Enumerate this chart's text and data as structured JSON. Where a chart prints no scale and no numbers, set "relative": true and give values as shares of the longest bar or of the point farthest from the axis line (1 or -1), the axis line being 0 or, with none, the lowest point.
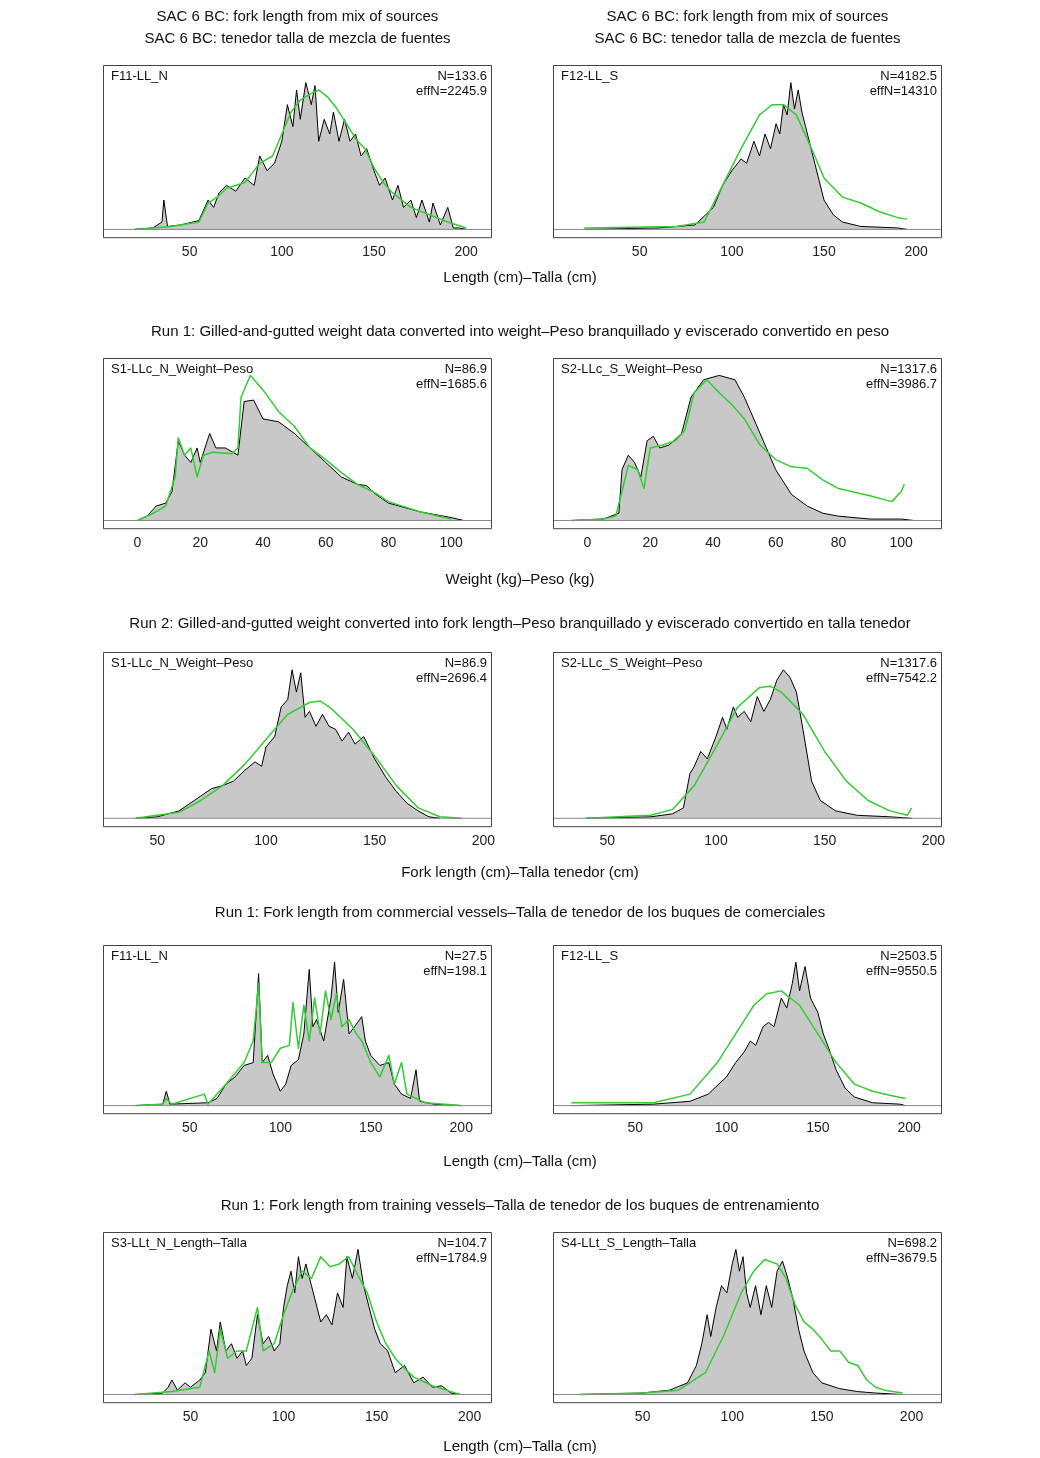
{
  "chart_data": [
    {
      "type": "area",
      "title": "SAC 6 BC: fork length from mix of sources",
      "subtitle": "SAC 6 BC: tenedor talla de mezcla de fuentes",
      "xlabel": "Length (cm)–Talla (cm)",
      "annotations": [
        "F11-LL_N",
        "N=133.6",
        "effN=2245.9"
      ],
      "relative": true,
      "xlim": [
        3,
        214
      ],
      "xticks": [
        50,
        100,
        150,
        200
      ],
      "series": [
        {
          "type": "area",
          "color": "#c8c8c8",
          "x": [
            20,
            30,
            35,
            36,
            38,
            45,
            55,
            60,
            63,
            66,
            70,
            75,
            80,
            85,
            88,
            92,
            96,
            100,
            103,
            106,
            108,
            110,
            113,
            116,
            118,
            120,
            123,
            126,
            128,
            131,
            134,
            137,
            140,
            143,
            146,
            150,
            153,
            156,
            160,
            163,
            166,
            170,
            173,
            176,
            180,
            182,
            186,
            190,
            193,
            196,
            200
          ],
          "values": [
            0,
            0.01,
            0.05,
            0.2,
            0.02,
            0.03,
            0.06,
            0.2,
            0.15,
            0.25,
            0.3,
            0.26,
            0.35,
            0.3,
            0.5,
            0.4,
            0.45,
            0.6,
            0.85,
            0.7,
            0.95,
            0.75,
            1.0,
            0.85,
            0.98,
            0.6,
            0.75,
            0.65,
            0.8,
            0.6,
            0.75,
            0.6,
            0.65,
            0.5,
            0.55,
            0.4,
            0.3,
            0.35,
            0.2,
            0.3,
            0.15,
            0.2,
            0.08,
            0.2,
            0.05,
            0.18,
            0.03,
            0.15,
            0.01,
            0.01,
            0
          ]
        },
        {
          "type": "line",
          "color": "#33cc33",
          "x": [
            20,
            40,
            55,
            60,
            65,
            70,
            80,
            88,
            95,
            100,
            105,
            110,
            115,
            120,
            125,
            130,
            135,
            140,
            145,
            150,
            155,
            160,
            170,
            180,
            190,
            200
          ],
          "values": [
            0,
            0.02,
            0.05,
            0.18,
            0.22,
            0.28,
            0.32,
            0.45,
            0.5,
            0.65,
            0.8,
            0.88,
            0.92,
            0.95,
            0.9,
            0.82,
            0.72,
            0.62,
            0.55,
            0.42,
            0.32,
            0.25,
            0.15,
            0.1,
            0.05,
            0.01
          ]
        }
      ]
    },
    {
      "type": "area",
      "title": "SAC 6 BC: fork length from mix of sources",
      "subtitle": "SAC 6 BC: tenedor talla de mezcla de fuentes",
      "annotations": [
        "F12-LL_S",
        "N=4182.5",
        "effN=14310"
      ],
      "relative": true,
      "xlim": [
        3,
        214
      ],
      "xticks": [
        50,
        100,
        150,
        200
      ],
      "series": [
        {
          "type": "area",
          "color": "#c8c8c8",
          "x": [
            20,
            60,
            80,
            90,
            95,
            100,
            105,
            108,
            112,
            115,
            118,
            121,
            124,
            126,
            128,
            130,
            132,
            134,
            136,
            138,
            140,
            145,
            150,
            155,
            160,
            170,
            190,
            195
          ],
          "values": [
            0,
            0.01,
            0.03,
            0.15,
            0.3,
            0.4,
            0.48,
            0.45,
            0.6,
            0.5,
            0.65,
            0.55,
            0.72,
            0.65,
            0.85,
            0.78,
            1.0,
            0.82,
            0.95,
            0.8,
            0.7,
            0.45,
            0.2,
            0.1,
            0.05,
            0.02,
            0.01,
            0
          ]
        },
        {
          "type": "line",
          "color": "#33cc33",
          "x": [
            20,
            70,
            85,
            95,
            105,
            115,
            122,
            128,
            135,
            145,
            150,
            160,
            170,
            180,
            190,
            195
          ],
          "values": [
            0.01,
            0.02,
            0.05,
            0.3,
            0.55,
            0.78,
            0.85,
            0.85,
            0.78,
            0.5,
            0.35,
            0.22,
            0.18,
            0.12,
            0.08,
            0.07
          ]
        }
      ]
    },
    {
      "type": "area",
      "title": "Run 1: Gilled-and-gutted weight data converted into weight–Peso branquillado y eviscerado convertido en peso",
      "xlabel": "Weight (kg)–Peso (kg)",
      "annotations": [
        "S1-LLc_N_Weight–Peso",
        "N=86.9",
        "effN=1685.6"
      ],
      "relative": true,
      "xlim": [
        -11,
        113
      ],
      "xticks": [
        0,
        20,
        40,
        60,
        80,
        100
      ],
      "series": [
        {
          "type": "area",
          "color": "#c8c8c8",
          "x": [
            0,
            3,
            6,
            9,
            11,
            13,
            15,
            17,
            19,
            20,
            23,
            25,
            28,
            32,
            34,
            37,
            40,
            45,
            50,
            55,
            60,
            65,
            70,
            73,
            76,
            80,
            90,
            100,
            104
          ],
          "values": [
            0,
            0.03,
            0.1,
            0.12,
            0.2,
            0.55,
            0.45,
            0.4,
            0.5,
            0.4,
            0.6,
            0.5,
            0.5,
            0.45,
            0.82,
            0.83,
            0.7,
            0.68,
            0.6,
            0.5,
            0.4,
            0.3,
            0.25,
            0.24,
            0.18,
            0.12,
            0.06,
            0.02,
            0
          ]
        },
        {
          "type": "line",
          "color": "#33cc33",
          "x": [
            0,
            5,
            9,
            12,
            13,
            15,
            17,
            19,
            21,
            24,
            30,
            32,
            33,
            36,
            40,
            45,
            50,
            55,
            60,
            65,
            70,
            75,
            80,
            90,
            100
          ],
          "values": [
            0,
            0.05,
            0.1,
            0.3,
            0.57,
            0.45,
            0.5,
            0.3,
            0.45,
            0.47,
            0.46,
            0.5,
            0.85,
            1.0,
            0.9,
            0.75,
            0.65,
            0.5,
            0.42,
            0.33,
            0.25,
            0.2,
            0.13,
            0.06,
            0.01
          ]
        }
      ]
    },
    {
      "type": "area",
      "annotations": [
        "S2-LLc_S_Weight–Peso",
        "N=1317.6",
        "effN=3986.7"
      ],
      "relative": true,
      "xlim": [
        -11,
        113
      ],
      "xticks": [
        0,
        20,
        40,
        60,
        80,
        100
      ],
      "series": [
        {
          "type": "area",
          "color": "#c8c8c8",
          "x": [
            -5,
            5,
            10,
            11,
            13,
            15,
            17,
            19,
            21,
            23,
            26,
            30,
            33,
            37,
            42,
            47,
            50,
            55,
            60,
            65,
            70,
            75,
            80,
            90,
            100,
            104
          ],
          "values": [
            0,
            0.01,
            0.05,
            0.35,
            0.45,
            0.4,
            0.3,
            0.55,
            0.58,
            0.5,
            0.52,
            0.6,
            0.85,
            0.97,
            1.0,
            0.97,
            0.85,
            0.6,
            0.35,
            0.18,
            0.1,
            0.05,
            0.03,
            0.01,
            0.01,
            0
          ]
        },
        {
          "type": "line",
          "color": "#33cc33",
          "x": [
            -5,
            5,
            9,
            11,
            13,
            16,
            18,
            20,
            24,
            28,
            31,
            34,
            38,
            42,
            46,
            50,
            55,
            60,
            65,
            70,
            75,
            80,
            90,
            97,
            100,
            101
          ],
          "values": [
            0,
            0.01,
            0.03,
            0.2,
            0.38,
            0.35,
            0.22,
            0.5,
            0.52,
            0.55,
            0.62,
            0.88,
            0.97,
            0.88,
            0.8,
            0.7,
            0.52,
            0.42,
            0.37,
            0.36,
            0.28,
            0.22,
            0.17,
            0.13,
            0.2,
            0.25
          ]
        }
      ]
    },
    {
      "type": "area",
      "title": "Run 2: Gilled-and-gutted weight converted into fork length–Peso branquillado y eviscerado convertido en talla tenedor",
      "xlabel": "Fork length (cm)–Talla tenedor (cm)",
      "annotations": [
        "S1-LLc_N_Weight–Peso",
        "N=86.9",
        "effN=2696.4"
      ],
      "relative": true,
      "xlim": [
        25,
        204
      ],
      "xticks": [
        50,
        100,
        150,
        200
      ],
      "series": [
        {
          "type": "area",
          "color": "#c8c8c8",
          "x": [
            40,
            50,
            60,
            70,
            75,
            80,
            85,
            90,
            95,
            98,
            100,
            104,
            107,
            110,
            112,
            114,
            116,
            118,
            120,
            123,
            126,
            129,
            132,
            135,
            138,
            141,
            145,
            150,
            155,
            160,
            165,
            170,
            175,
            180
          ],
          "values": [
            0,
            0.01,
            0.05,
            0.15,
            0.2,
            0.22,
            0.25,
            0.32,
            0.38,
            0.35,
            0.48,
            0.55,
            0.75,
            0.8,
            1.0,
            0.85,
            0.98,
            0.68,
            0.72,
            0.62,
            0.7,
            0.62,
            0.6,
            0.52,
            0.58,
            0.5,
            0.55,
            0.4,
            0.28,
            0.18,
            0.1,
            0.05,
            0.01,
            0
          ]
        },
        {
          "type": "line",
          "color": "#33cc33",
          "x": [
            40,
            60,
            70,
            80,
            90,
            100,
            110,
            120,
            125,
            130,
            140,
            150,
            160,
            170,
            180,
            190
          ],
          "values": [
            0,
            0.04,
            0.12,
            0.22,
            0.36,
            0.53,
            0.7,
            0.78,
            0.79,
            0.74,
            0.6,
            0.42,
            0.22,
            0.07,
            0.01,
            0
          ]
        }
      ]
    },
    {
      "type": "area",
      "annotations": [
        "S2-LLc_S_Weight–Peso",
        "N=1317.6",
        "effN=7542.2"
      ],
      "relative": true,
      "xlim": [
        25,
        204
      ],
      "xticks": [
        50,
        100,
        150,
        200
      ],
      "series": [
        {
          "type": "area",
          "color": "#c8c8c8",
          "x": [
            40,
            70,
            80,
            85,
            88,
            90,
            93,
            96,
            100,
            103,
            105,
            108,
            110,
            113,
            116,
            119,
            122,
            125,
            128,
            131,
            134,
            137,
            140,
            144,
            148,
            155,
            165,
            180,
            190
          ],
          "values": [
            0,
            0.01,
            0.03,
            0.07,
            0.3,
            0.35,
            0.45,
            0.4,
            0.55,
            0.68,
            0.6,
            0.75,
            0.68,
            0.72,
            0.65,
            0.82,
            0.72,
            0.8,
            0.93,
            1.0,
            0.95,
            0.85,
            0.6,
            0.25,
            0.12,
            0.05,
            0.02,
            0.01,
            0
          ]
        },
        {
          "type": "line",
          "color": "#33cc33",
          "x": [
            40,
            70,
            80,
            90,
            100,
            110,
            120,
            125,
            130,
            140,
            150,
            160,
            170,
            180,
            188,
            190
          ],
          "values": [
            0,
            0.02,
            0.06,
            0.22,
            0.48,
            0.75,
            0.88,
            0.89,
            0.85,
            0.7,
            0.45,
            0.25,
            0.12,
            0.05,
            0.02,
            0.07
          ]
        }
      ]
    },
    {
      "type": "area",
      "title": "Run 1: Fork length from commercial vessels–Talla de tenedor de los buques de comerciales",
      "xlabel": "Length (cm)–Talla (cm)",
      "annotations": [
        "F11-LL_N",
        "N=27.5",
        "effN=198.1"
      ],
      "relative": true,
      "xlim": [
        2,
        217
      ],
      "xticks": [
        50,
        100,
        150,
        200
      ],
      "series": [
        {
          "type": "area",
          "color": "#c8c8c8",
          "x": [
            20,
            35,
            37,
            39,
            60,
            65,
            70,
            75,
            80,
            85,
            88,
            90,
            93,
            96,
            100,
            103,
            106,
            110,
            113,
            116,
            118,
            120,
            124,
            128,
            130,
            132,
            135,
            138,
            141,
            145,
            147,
            150,
            155,
            160,
            163,
            167,
            172,
            175,
            177,
            185,
            200
          ],
          "values": [
            0,
            0.01,
            0.1,
            0.01,
            0.02,
            0.05,
            0.15,
            0.2,
            0.28,
            0.3,
            0.92,
            0.3,
            0.35,
            0.22,
            0.1,
            0.15,
            0.28,
            0.32,
            0.5,
            0.95,
            0.55,
            0.6,
            0.45,
            0.75,
            1.0,
            0.65,
            0.88,
            0.5,
            0.55,
            0.62,
            0.45,
            0.35,
            0.28,
            0.3,
            0.15,
            0.08,
            0.05,
            0.25,
            0.03,
            0.01,
            0
          ]
        },
        {
          "type": "line",
          "color": "#33cc33",
          "x": [
            20,
            35,
            37,
            40,
            58,
            60,
            70,
            80,
            85,
            88,
            90,
            95,
            100,
            105,
            107,
            110,
            113,
            116,
            119,
            122,
            125,
            128,
            131,
            134,
            138,
            142,
            145,
            150,
            155,
            160,
            163,
            167,
            170,
            180,
            200
          ],
          "values": [
            0,
            0.01,
            0.05,
            0.01,
            0.08,
            0.01,
            0.15,
            0.3,
            0.45,
            0.85,
            0.3,
            0.3,
            0.4,
            0.42,
            0.72,
            0.4,
            0.7,
            0.45,
            0.75,
            0.5,
            0.8,
            0.6,
            0.78,
            0.55,
            0.6,
            0.5,
            0.45,
            0.3,
            0.2,
            0.35,
            0.15,
            0.3,
            0.08,
            0.02,
            0
          ]
        }
      ]
    },
    {
      "type": "area",
      "annotations": [
        "F12-LL_S",
        "N=2503.5",
        "effN=9550.5"
      ],
      "relative": true,
      "xlim": [
        5,
        218
      ],
      "xticks": [
        50,
        100,
        150,
        200
      ],
      "series": [
        {
          "type": "area",
          "color": "#c8c8c8",
          "x": [
            15,
            60,
            80,
            90,
            100,
            105,
            110,
            113,
            116,
            120,
            123,
            126,
            130,
            133,
            136,
            138,
            140,
            143,
            146,
            150,
            153,
            156,
            160,
            165,
            170,
            180,
            195,
            198
          ],
          "values": [
            0,
            0.01,
            0.03,
            0.08,
            0.2,
            0.3,
            0.38,
            0.45,
            0.42,
            0.55,
            0.58,
            0.55,
            0.75,
            0.68,
            0.85,
            1.0,
            0.8,
            0.97,
            0.75,
            0.65,
            0.5,
            0.4,
            0.25,
            0.12,
            0.06,
            0.02,
            0.01,
            0
          ]
        },
        {
          "type": "line",
          "color": "#33cc33",
          "x": [
            15,
            60,
            80,
            95,
            105,
            115,
            122,
            130,
            140,
            150,
            160,
            170,
            180,
            190,
            198
          ],
          "values": [
            0.02,
            0.02,
            0.08,
            0.3,
            0.5,
            0.7,
            0.78,
            0.8,
            0.7,
            0.5,
            0.3,
            0.15,
            0.1,
            0.07,
            0.05
          ]
        }
      ]
    },
    {
      "type": "area",
      "title": "Run 1: Fork length from training vessels–Talla de tenedor de los buques de entrenamiento",
      "xlabel": "Length (cm)–Talla (cm)",
      "annotations": [
        "S3-LLt_N_Length–Talla",
        "N=104.7",
        "effN=1784.9"
      ],
      "relative": true,
      "xlim": [
        3,
        212
      ],
      "xticks": [
        50,
        100,
        150,
        200
      ],
      "series": [
        {
          "type": "area",
          "color": "#c8c8c8",
          "x": [
            20,
            35,
            38,
            40,
            43,
            47,
            50,
            55,
            58,
            61,
            64,
            66,
            69,
            72,
            75,
            78,
            80,
            83,
            86,
            89,
            92,
            95,
            98,
            100,
            102,
            104,
            106,
            108,
            110,
            112,
            115,
            118,
            120,
            123,
            126,
            129,
            132,
            134,
            137,
            140,
            143,
            146,
            149,
            152,
            156,
            160,
            165,
            170,
            175,
            180,
            185,
            190,
            195
          ],
          "values": [
            0,
            0.01,
            0.05,
            0.1,
            0.03,
            0.08,
            0.05,
            0.1,
            0.15,
            0.45,
            0.3,
            0.5,
            0.3,
            0.35,
            0.25,
            0.3,
            0.2,
            0.25,
            0.55,
            0.35,
            0.4,
            0.3,
            0.35,
            0.6,
            0.75,
            0.85,
            0.7,
            0.95,
            0.8,
            0.9,
            0.75,
            0.6,
            0.5,
            0.55,
            0.48,
            0.7,
            0.6,
            0.95,
            0.8,
            1.0,
            0.75,
            0.6,
            0.45,
            0.35,
            0.3,
            0.15,
            0.2,
            0.08,
            0.12,
            0.05,
            0.06,
            0.01,
            0
          ]
        },
        {
          "type": "line",
          "color": "#33cc33",
          "x": [
            20,
            40,
            55,
            60,
            63,
            66,
            70,
            75,
            80,
            86,
            89,
            95,
            100,
            105,
            110,
            115,
            120,
            125,
            130,
            135,
            140,
            145,
            150,
            155,
            160,
            165,
            170,
            180,
            190,
            195
          ],
          "values": [
            0,
            0.02,
            0.05,
            0.3,
            0.15,
            0.45,
            0.25,
            0.3,
            0.3,
            0.6,
            0.3,
            0.35,
            0.55,
            0.72,
            0.85,
            0.8,
            0.95,
            0.88,
            0.9,
            0.95,
            0.82,
            0.7,
            0.5,
            0.35,
            0.25,
            0.18,
            0.12,
            0.06,
            0.02,
            0
          ]
        }
      ]
    },
    {
      "type": "area",
      "annotations": [
        "S4-LLt_S_Length–Talla",
        "N=698.2",
        "effN=3679.5"
      ],
      "relative": true,
      "xlim": [
        0,
        217
      ],
      "xticks": [
        50,
        100,
        150,
        200
      ],
      "series": [
        {
          "type": "area",
          "color": "#c8c8c8",
          "x": [
            15,
            50,
            65,
            75,
            80,
            83,
            86,
            88,
            91,
            94,
            97,
            100,
            102,
            104,
            106,
            108,
            110,
            113,
            116,
            119,
            122,
            125,
            128,
            131,
            134,
            137,
            140,
            145,
            150,
            160,
            170,
            180,
            195
          ],
          "values": [
            0,
            0.01,
            0.03,
            0.08,
            0.2,
            0.35,
            0.55,
            0.4,
            0.6,
            0.75,
            0.7,
            0.9,
            1.0,
            0.85,
            0.95,
            0.7,
            0.6,
            0.75,
            0.55,
            0.75,
            0.6,
            0.85,
            0.92,
            0.8,
            0.65,
            0.45,
            0.3,
            0.15,
            0.08,
            0.04,
            0.02,
            0.01,
            0
          ]
        },
        {
          "type": "line",
          "color": "#33cc33",
          "x": [
            15,
            50,
            70,
            85,
            95,
            105,
            112,
            118,
            125,
            130,
            135,
            140,
            145,
            150,
            155,
            160,
            165,
            170,
            175,
            180,
            185,
            195
          ],
          "values": [
            0,
            0.01,
            0.03,
            0.15,
            0.4,
            0.7,
            0.85,
            0.93,
            0.9,
            0.8,
            0.62,
            0.5,
            0.45,
            0.38,
            0.3,
            0.3,
            0.22,
            0.2,
            0.1,
            0.05,
            0.03,
            0.01
          ]
        }
      ]
    }
  ]
}
